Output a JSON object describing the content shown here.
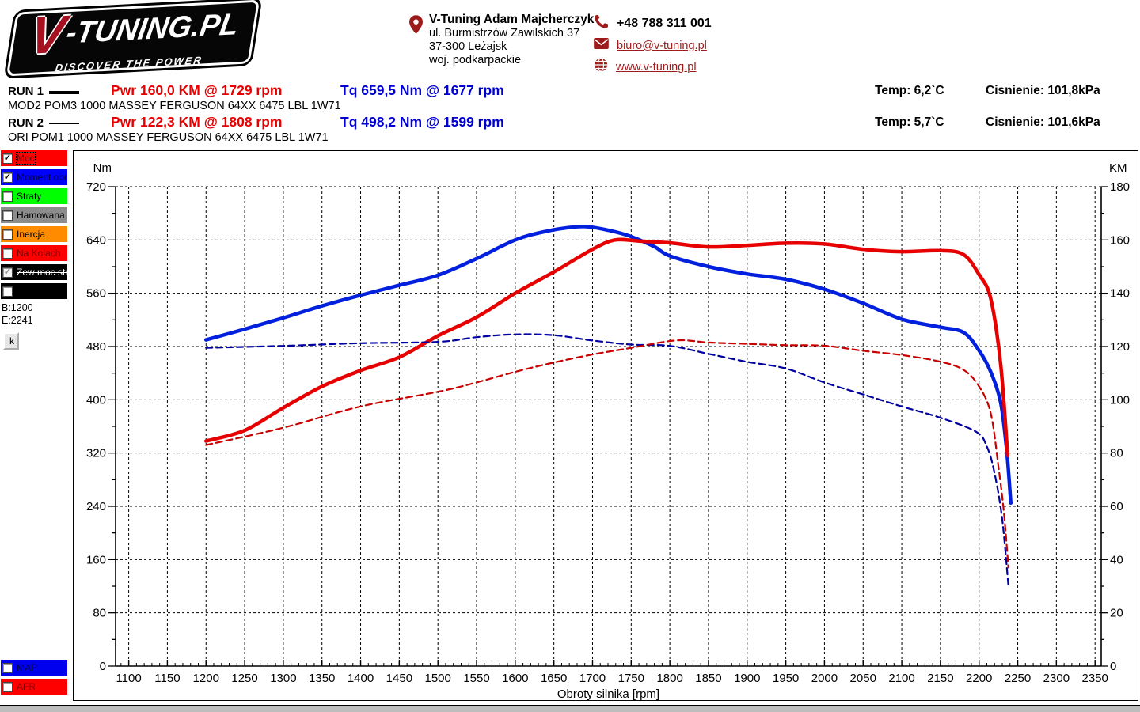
{
  "header": {
    "logo": {
      "v": "V",
      "rest": "-TUNING.PL",
      "subtitle": "DISCOVER THE POWER"
    },
    "accent_color": "#9e1b1b",
    "contact": {
      "name": "V-Tuning Adam Majcherczyk",
      "address_line1": "ul. Burmistrzów Zawilskich 37",
      "address_line2": "37-300 Leżajsk",
      "address_line3": "woj. podkarpackie",
      "phone": "+48 788 311 001",
      "email": "biuro@v-tuning.pl",
      "website": "www.v-tuning.pl"
    }
  },
  "runs": [
    {
      "label": "RUN 1",
      "line": "thick",
      "power": "Pwr  160,0 KM @ 1729 rpm",
      "torque": "Tq 659,5 Nm @ 1677 rpm",
      "description": "MOD2 POM3 1000 MASSEY FERGUSON 64XX 6475 LBL 1W71",
      "temp": "Temp: 6,2`C",
      "pressure": "Cisnienie: 101,8kPa"
    },
    {
      "label": "RUN 2",
      "line": "thin",
      "power": "Pwr  122,3 KM @ 1808 rpm",
      "torque": "Tq 498,2 Nm @ 1599 rpm",
      "description": "ORI POM1 1000 MASSEY FERGUSON 64XX 6475 LBL 1W71",
      "temp": "Temp: 5,7`C",
      "pressure": "Cisnienie: 101,6kPa"
    }
  ],
  "sidebar": {
    "channels": [
      {
        "label": "Moc",
        "color": "#ff0000",
        "text_color": "#7a0000",
        "checked": true,
        "disabled": false,
        "focused": true,
        "struck": false
      },
      {
        "label": "Moment obr",
        "color": "#0000ff",
        "text_color": "#00004f",
        "checked": true,
        "disabled": false,
        "focused": false,
        "struck": false
      },
      {
        "label": "Straty",
        "color": "#00ff00",
        "text_color": "#000000",
        "checked": false,
        "disabled": false,
        "focused": false,
        "struck": false
      },
      {
        "label": "Hamowana",
        "color": "#8c8c8c",
        "text_color": "#000000",
        "checked": false,
        "disabled": false,
        "focused": false,
        "struck": false
      },
      {
        "label": "Inercja",
        "color": "#ff8c00",
        "text_color": "#000000",
        "checked": false,
        "disabled": false,
        "focused": false,
        "struck": false
      },
      {
        "label": "Na Kolach",
        "color": "#ff0000",
        "text_color": "#7a0000",
        "checked": false,
        "disabled": false,
        "focused": false,
        "struck": false
      },
      {
        "label": "Zew moc str",
        "color": "#000000",
        "text_color": "#ffffff",
        "checked": true,
        "disabled": true,
        "focused": false,
        "struck": true
      },
      {
        "label": "",
        "color": "#000000",
        "text_color": "#ffffff",
        "checked": false,
        "disabled": false,
        "focused": false,
        "struck": false
      }
    ],
    "range_begin": "B:1200",
    "range_end": "E:2241",
    "k_button": "k",
    "bottom_channels": [
      {
        "label": "MAP",
        "color": "#0000ee",
        "text_color": "#00004f",
        "checked": false
      },
      {
        "label": "AFR",
        "color": "#ff0000",
        "text_color": "#7a0000",
        "checked": false
      }
    ]
  },
  "chart_data": {
    "type": "line",
    "title": "",
    "xlabel": "Obroty silnika [rpm]",
    "grid": "dashed",
    "axes": {
      "x": {
        "label": "Obroty silnika [rpm]",
        "min": 1083,
        "max": 2358,
        "tick_start": 1100,
        "tick_end": 2350,
        "tick_step": 50,
        "minor_step": 10
      },
      "left": {
        "label": "Nm",
        "min": 0,
        "max": 720,
        "tick_step": 80,
        "minor_step": 40
      },
      "right": {
        "label": "KM",
        "min": 0,
        "max": 180,
        "tick_step": 20,
        "minor_step": 10
      }
    },
    "series": [
      {
        "id": "torque-mod",
        "run": "RUN 1",
        "axis": "left",
        "unit": "Nm",
        "color": "#0020dd",
        "dash": false,
        "width": 4.5,
        "peak": {
          "value": 659.5,
          "rpm": 1677
        },
        "points": [
          [
            1200,
            490
          ],
          [
            1250,
            506
          ],
          [
            1300,
            523
          ],
          [
            1350,
            541
          ],
          [
            1400,
            557
          ],
          [
            1450,
            572
          ],
          [
            1500,
            587
          ],
          [
            1550,
            612
          ],
          [
            1600,
            640
          ],
          [
            1640,
            653
          ],
          [
            1677,
            659.5
          ],
          [
            1700,
            659
          ],
          [
            1730,
            652
          ],
          [
            1750,
            645
          ],
          [
            1780,
            630
          ],
          [
            1800,
            616
          ],
          [
            1850,
            600
          ],
          [
            1900,
            589
          ],
          [
            1950,
            581
          ],
          [
            2000,
            566
          ],
          [
            2050,
            545
          ],
          [
            2100,
            521
          ],
          [
            2150,
            509
          ],
          [
            2180,
            501
          ],
          [
            2200,
            474
          ],
          [
            2215,
            442
          ],
          [
            2228,
            395
          ],
          [
            2236,
            320
          ],
          [
            2241,
            245
          ]
        ]
      },
      {
        "id": "power-mod",
        "run": "RUN 1",
        "axis": "right",
        "unit": "KM",
        "color": "#e60000",
        "dash": false,
        "width": 4.5,
        "peak": {
          "value": 160.0,
          "rpm": 1729
        },
        "points": [
          [
            1200,
            84.5
          ],
          [
            1250,
            88.5
          ],
          [
            1300,
            97
          ],
          [
            1350,
            105
          ],
          [
            1400,
            111
          ],
          [
            1450,
            116
          ],
          [
            1500,
            124
          ],
          [
            1550,
            131
          ],
          [
            1600,
            140
          ],
          [
            1650,
            148
          ],
          [
            1700,
            156.5
          ],
          [
            1729,
            160
          ],
          [
            1760,
            159.6
          ],
          [
            1800,
            158.9
          ],
          [
            1850,
            157.4
          ],
          [
            1900,
            158
          ],
          [
            1950,
            158.8
          ],
          [
            2000,
            158.5
          ],
          [
            2050,
            156.5
          ],
          [
            2100,
            155.6
          ],
          [
            2150,
            156
          ],
          [
            2180,
            154.5
          ],
          [
            2200,
            147
          ],
          [
            2215,
            138
          ],
          [
            2228,
            113
          ],
          [
            2237,
            79
          ]
        ]
      },
      {
        "id": "torque-ori",
        "run": "RUN 2",
        "axis": "left",
        "unit": "Nm",
        "color": "#0000a0",
        "dash": true,
        "width": 2.2,
        "peak": {
          "value": 498.2,
          "rpm": 1599
        },
        "points": [
          [
            1200,
            478
          ],
          [
            1300,
            481
          ],
          [
            1400,
            485
          ],
          [
            1500,
            487
          ],
          [
            1550,
            494
          ],
          [
            1599,
            498.2
          ],
          [
            1650,
            497
          ],
          [
            1700,
            489
          ],
          [
            1750,
            483
          ],
          [
            1800,
            481
          ],
          [
            1850,
            469
          ],
          [
            1900,
            457
          ],
          [
            1950,
            447
          ],
          [
            2000,
            426
          ],
          [
            2050,
            408
          ],
          [
            2100,
            390
          ],
          [
            2150,
            373
          ],
          [
            2196,
            352
          ],
          [
            2210,
            330
          ],
          [
            2220,
            290
          ],
          [
            2230,
            220
          ],
          [
            2238,
            120
          ]
        ]
      },
      {
        "id": "power-ori",
        "run": "RUN 2",
        "axis": "right",
        "unit": "KM",
        "color": "#c80000",
        "dash": true,
        "width": 2.2,
        "peak": {
          "value": 122.3,
          "rpm": 1808
        },
        "points": [
          [
            1200,
            83
          ],
          [
            1300,
            89.5
          ],
          [
            1400,
            97.5
          ],
          [
            1500,
            103
          ],
          [
            1550,
            106.5
          ],
          [
            1600,
            110.5
          ],
          [
            1650,
            114
          ],
          [
            1700,
            117
          ],
          [
            1750,
            119.5
          ],
          [
            1808,
            122.3
          ],
          [
            1850,
            121.5
          ],
          [
            1900,
            121
          ],
          [
            1950,
            120.5
          ],
          [
            2000,
            120.3
          ],
          [
            2050,
            118.4
          ],
          [
            2100,
            116.8
          ],
          [
            2150,
            114.3
          ],
          [
            2180,
            111.2
          ],
          [
            2200,
            105
          ],
          [
            2215,
            95
          ],
          [
            2225,
            75
          ],
          [
            2232,
            58
          ],
          [
            2238,
            37
          ]
        ]
      }
    ]
  }
}
